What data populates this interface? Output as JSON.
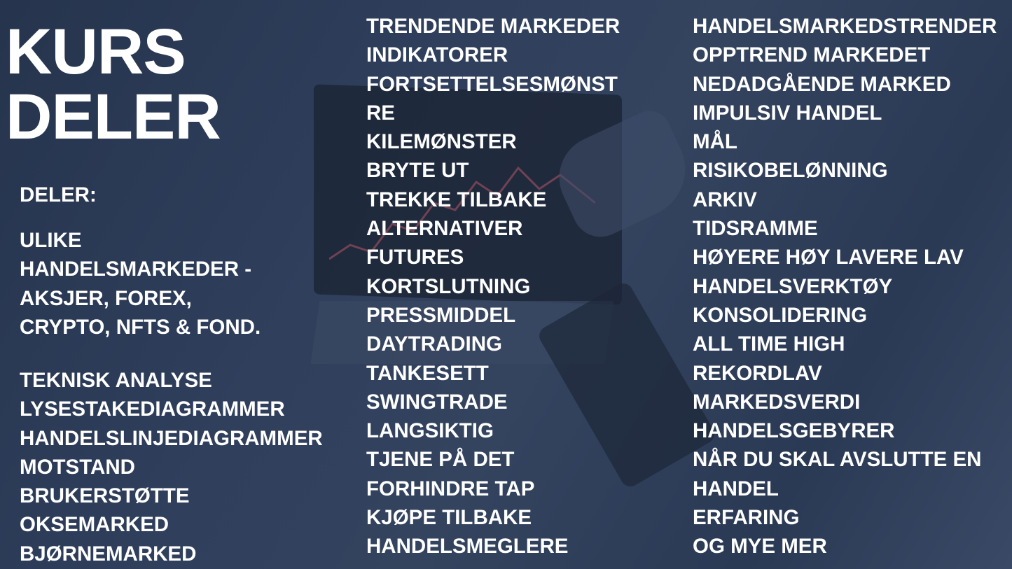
{
  "title": [
    "KURS",
    "DELER"
  ],
  "left": {
    "heading": "DELER:",
    "intro": [
      "ULIKE",
      "HANDELSMARKEDER -",
      "AKSJER, FOREX,",
      "CRYPTO, NFTS & FOND."
    ],
    "items": [
      "TEKNISK ANALYSE",
      "LYSESTAKEDIAGRAMMER",
      "HANDELSLINJEDIAGRAMMER",
      "MOTSTAND",
      "BRUKERSTØTTE",
      "OKSEMARKED",
      "BJØRNEMARKED"
    ]
  },
  "middle": [
    "TRENDENDE MARKEDER",
    "INDIKATORER",
    "FORTSETTELSESMØNST",
    "RE",
    "KILEMØNSTER",
    "BRYTE UT",
    "TREKKE TILBAKE",
    "ALTERNATIVER",
    "FUTURES",
    "KORTSLUTNING",
    "PRESSMIDDEL",
    "DAYTRADING",
    "TANKESETT",
    "SWINGTRADE",
    "LANGSIKTIG",
    "TJENE PÅ DET",
    "FORHINDRE TAP",
    "KJØPE TILBAKE",
    "HANDELSMEGLERE"
  ],
  "right": [
    "HANDELSMARKEDSTRENDER",
    "OPPTREND MARKEDET",
    "NEDADGÅENDE MARKED",
    "IMPULSIV HANDEL",
    "MÅL",
    "RISIKOBELØNNING",
    "ARKIV",
    "TIDSRAMME",
    "HØYERE HØY LAVERE LAV",
    "HANDELSVERKTØY",
    "KONSOLIDERING",
    "ALL TIME HIGH",
    "REKORDLAV",
    "MARKEDSVERDI",
    "HANDELSGEBYRER",
    "NÅR DU SKAL AVSLUTTE EN",
    "HANDEL",
    "ERFARING",
    "OG MYE MER"
  ]
}
